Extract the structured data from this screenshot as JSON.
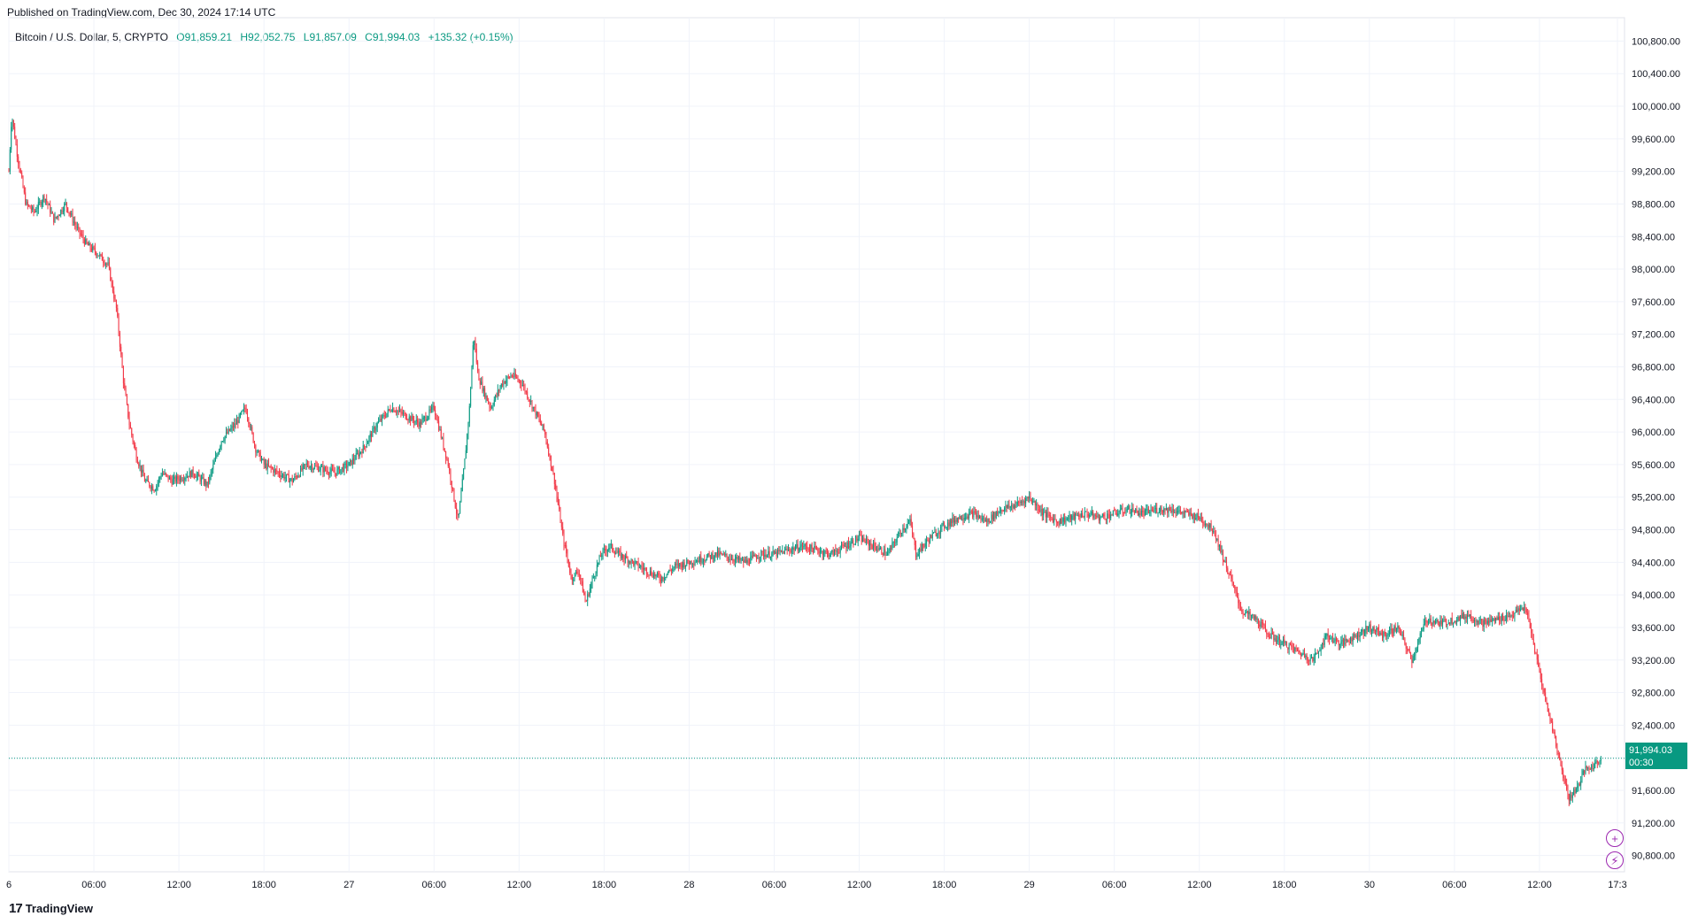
{
  "header": {
    "published": "Published on TradingView.com, Dec 30, 2024 17:14 UTC"
  },
  "symbol": {
    "name": "Bitcoin / U.S. Dollar, 5, CRYPTO",
    "open": "O91,859.21",
    "high": "H92,052.75",
    "low": "L91,857.09",
    "close": "C91,994.03",
    "change": "+135.32 (+0.15%)"
  },
  "last_price": {
    "value": "91,994.03",
    "countdown": "00:30"
  },
  "footer": {
    "brand": "TradingView",
    "logo_glyph": "17"
  },
  "colors": {
    "up": "#089981",
    "down": "#f23645",
    "grid": "#f0f3fa",
    "accent": "#9c27b0"
  },
  "icons": [
    "plus-circle-icon",
    "lightning-circle-icon",
    "tradingview-logo-icon"
  ],
  "chart_data": {
    "type": "candlestick-ohlc",
    "title": "Bitcoin / U.S. Dollar, 5, CRYPTO",
    "ylim": [
      90600,
      101000
    ],
    "y_ticks": [
      100800,
      100400,
      100000,
      99600,
      99200,
      98800,
      98400,
      98000,
      97600,
      97200,
      96800,
      96400,
      96000,
      95600,
      95200,
      94800,
      94400,
      94000,
      93600,
      93200,
      92800,
      92400,
      92000,
      91600,
      91200,
      90800
    ],
    "y_tick_labels": [
      "100,800.00",
      "100,400.00",
      "100,000.00",
      "99,600.00",
      "99,200.00",
      "98,800.00",
      "98,400.00",
      "98,000.00",
      "97,600.00",
      "97,200.00",
      "96,800.00",
      "96,400.00",
      "96,000.00",
      "95,600.00",
      "95,200.00",
      "94,800.00",
      "94,400.00",
      "94,000.00",
      "93,600.00",
      "93,200.00",
      "92,800.00",
      "92,400.00",
      "92,000.00",
      "91,600.00",
      "91,200.00",
      "90,800.00"
    ],
    "x_tick_labels": [
      "6",
      "06:00",
      "12:00",
      "18:00",
      "27",
      "06:00",
      "12:00",
      "18:00",
      "28",
      "06:00",
      "12:00",
      "18:00",
      "29",
      "06:00",
      "12:00",
      "18:00",
      "30",
      "06:00",
      "12:00",
      "17:3"
    ],
    "x_tick_hours": [
      0,
      6,
      12,
      18,
      24,
      30,
      36,
      42,
      48,
      54,
      60,
      66,
      72,
      78,
      84,
      90,
      96,
      102,
      108,
      113.5
    ],
    "x_range_hours": [
      0,
      114
    ],
    "last_price": 91994.03,
    "price_path_hours": [
      0,
      0.2,
      0.6,
      1.2,
      1.8,
      2.5,
      3.2,
      4.0,
      4.8,
      5.5,
      6.2,
      7.0,
      7.6,
      8.1,
      8.5,
      9.0,
      9.6,
      10.3,
      10.8,
      11.5,
      12.3,
      13.0,
      14.0,
      15.0,
      16.0,
      16.7,
      17.4,
      18.0,
      19.0,
      20.0,
      21.0,
      22.0,
      23.0,
      24.0,
      25.0,
      26.0,
      27.0,
      28.0,
      29.0,
      30.0,
      31.0,
      31.7,
      32.2,
      32.5,
      32.8,
      33.1,
      33.5,
      34.0,
      34.8,
      35.5,
      36.2,
      37.0,
      37.8,
      38.5,
      39.1,
      39.7,
      40.2,
      40.7,
      41.2,
      41.8,
      42.4,
      43.0,
      44.0,
      45.0,
      46.0,
      47.0,
      48.0,
      49.0,
      50.0,
      51.0,
      52.0,
      53.0,
      54.0,
      55.0,
      56.0,
      57.0,
      58.0,
      59.0,
      60.0,
      61.0,
      62.0,
      63.0,
      63.6,
      64.0,
      65.0,
      66.0,
      67.0,
      68.0,
      69.0,
      70.0,
      71.0,
      72.0,
      73.0,
      74.0,
      75.0,
      76.0,
      77.0,
      78.0,
      79.0,
      80.0,
      81.0,
      82.0,
      83.0,
      84.0,
      85.0,
      86.0,
      87.0,
      88.0,
      89.0,
      90.0,
      91.0,
      92.0,
      93.0,
      94.0,
      95.0,
      96.0,
      97.0,
      98.0,
      99.0,
      100.0,
      101.0,
      102.0,
      103.0,
      104.0,
      105.0,
      106.0,
      107.0,
      107.7,
      108.3,
      109.0,
      109.5,
      110.1,
      110.7,
      111.2,
      111.8,
      112.4,
      113.0,
      113.5
    ],
    "price_path": [
      99200,
      99900,
      99400,
      98800,
      98700,
      98900,
      98600,
      98800,
      98500,
      98300,
      98200,
      98050,
      97500,
      96600,
      96100,
      95700,
      95400,
      95300,
      95500,
      95400,
      95450,
      95500,
      95350,
      95900,
      96100,
      96300,
      95800,
      95600,
      95500,
      95400,
      95600,
      95550,
      95500,
      95600,
      95800,
      96100,
      96300,
      96200,
      96100,
      96300,
      95600,
      94900,
      95700,
      96300,
      97200,
      96700,
      96500,
      96300,
      96600,
      96700,
      96600,
      96300,
      96000,
      95400,
      94700,
      94200,
      94300,
      93900,
      94200,
      94500,
      94600,
      94500,
      94400,
      94300,
      94200,
      94350,
      94400,
      94450,
      94500,
      94450,
      94400,
      94500,
      94500,
      94550,
      94600,
      94550,
      94500,
      94600,
      94700,
      94600,
      94500,
      94800,
      94900,
      94500,
      94700,
      94850,
      94950,
      95000,
      94900,
      95050,
      95100,
      95200,
      95000,
      94900,
      94950,
      95000,
      94950,
      95000,
      95050,
      95000,
      95050,
      95050,
      95000,
      94950,
      94800,
      94300,
      93800,
      93700,
      93500,
      93400,
      93300,
      93200,
      93500,
      93400,
      93500,
      93600,
      93500,
      93600,
      93200,
      93700,
      93650,
      93700,
      93750,
      93650,
      93700,
      93750,
      93850,
      93300,
      92800,
      92300,
      91900,
      91500,
      91650,
      91850,
      91900,
      91994.03
    ],
    "annotations": []
  }
}
